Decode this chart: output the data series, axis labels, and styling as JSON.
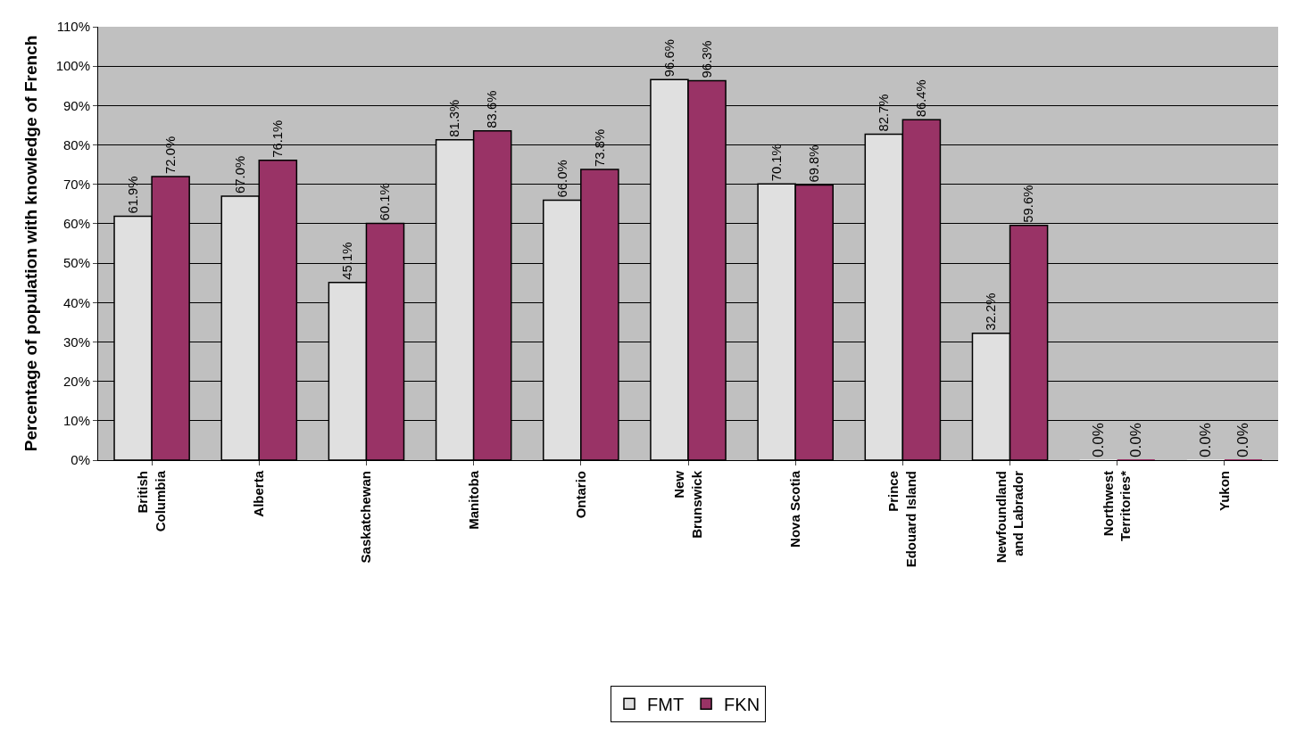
{
  "chart_data": {
    "type": "bar",
    "ylabel": "Percentage of population with knowledge of French",
    "categories": [
      "British Columbia",
      "Alberta",
      "Saskatchewan",
      "Manitoba",
      "Ontario",
      "New Brunswick",
      "Nova Scotia",
      "Prince Edouard Island",
      "Newfoundland and Labrador",
      "Northwest Territories*",
      "Yukon"
    ],
    "series": [
      {
        "name": "FMT",
        "color": "#e0e0e0",
        "values": [
          61.9,
          67.0,
          45.1,
          81.3,
          66.0,
          96.6,
          70.1,
          82.7,
          32.2,
          0.0,
          0.0
        ],
        "value_labels": [
          "61.9%",
          "67.0%",
          "45.1%",
          "81.3%",
          "66.0%",
          "96.6%",
          "70.1%",
          "82.7%",
          "32.2%",
          "0.0%",
          "0.0%"
        ]
      },
      {
        "name": "FKN",
        "color": "#993366",
        "values": [
          72.0,
          76.1,
          60.1,
          83.6,
          73.8,
          96.3,
          69.8,
          86.4,
          59.6,
          0.0,
          0.0
        ],
        "value_labels": [
          "72.0%",
          "76.1%",
          "60.1%",
          "83.6%",
          "73.8%",
          "96.3%",
          "69.8%",
          "86.4%",
          "59.6%",
          "0.0%",
          "0.0%"
        ]
      }
    ],
    "ylim": [
      0,
      110
    ],
    "yticks": [
      {
        "value": 0,
        "label": "0%"
      },
      {
        "value": 10,
        "label": "10%"
      },
      {
        "value": 20,
        "label": "20%"
      },
      {
        "value": 30,
        "label": "30%"
      },
      {
        "value": 40,
        "label": "40%"
      },
      {
        "value": 50,
        "label": "50%"
      },
      {
        "value": 60,
        "label": "60%"
      },
      {
        "value": 70,
        "label": "70%"
      },
      {
        "value": 80,
        "label": "80%"
      },
      {
        "value": 90,
        "label": "90%"
      },
      {
        "value": 100,
        "label": "100%"
      },
      {
        "value": 110,
        "label": "110%"
      }
    ],
    "grid": "y",
    "legend": "bottom"
  }
}
